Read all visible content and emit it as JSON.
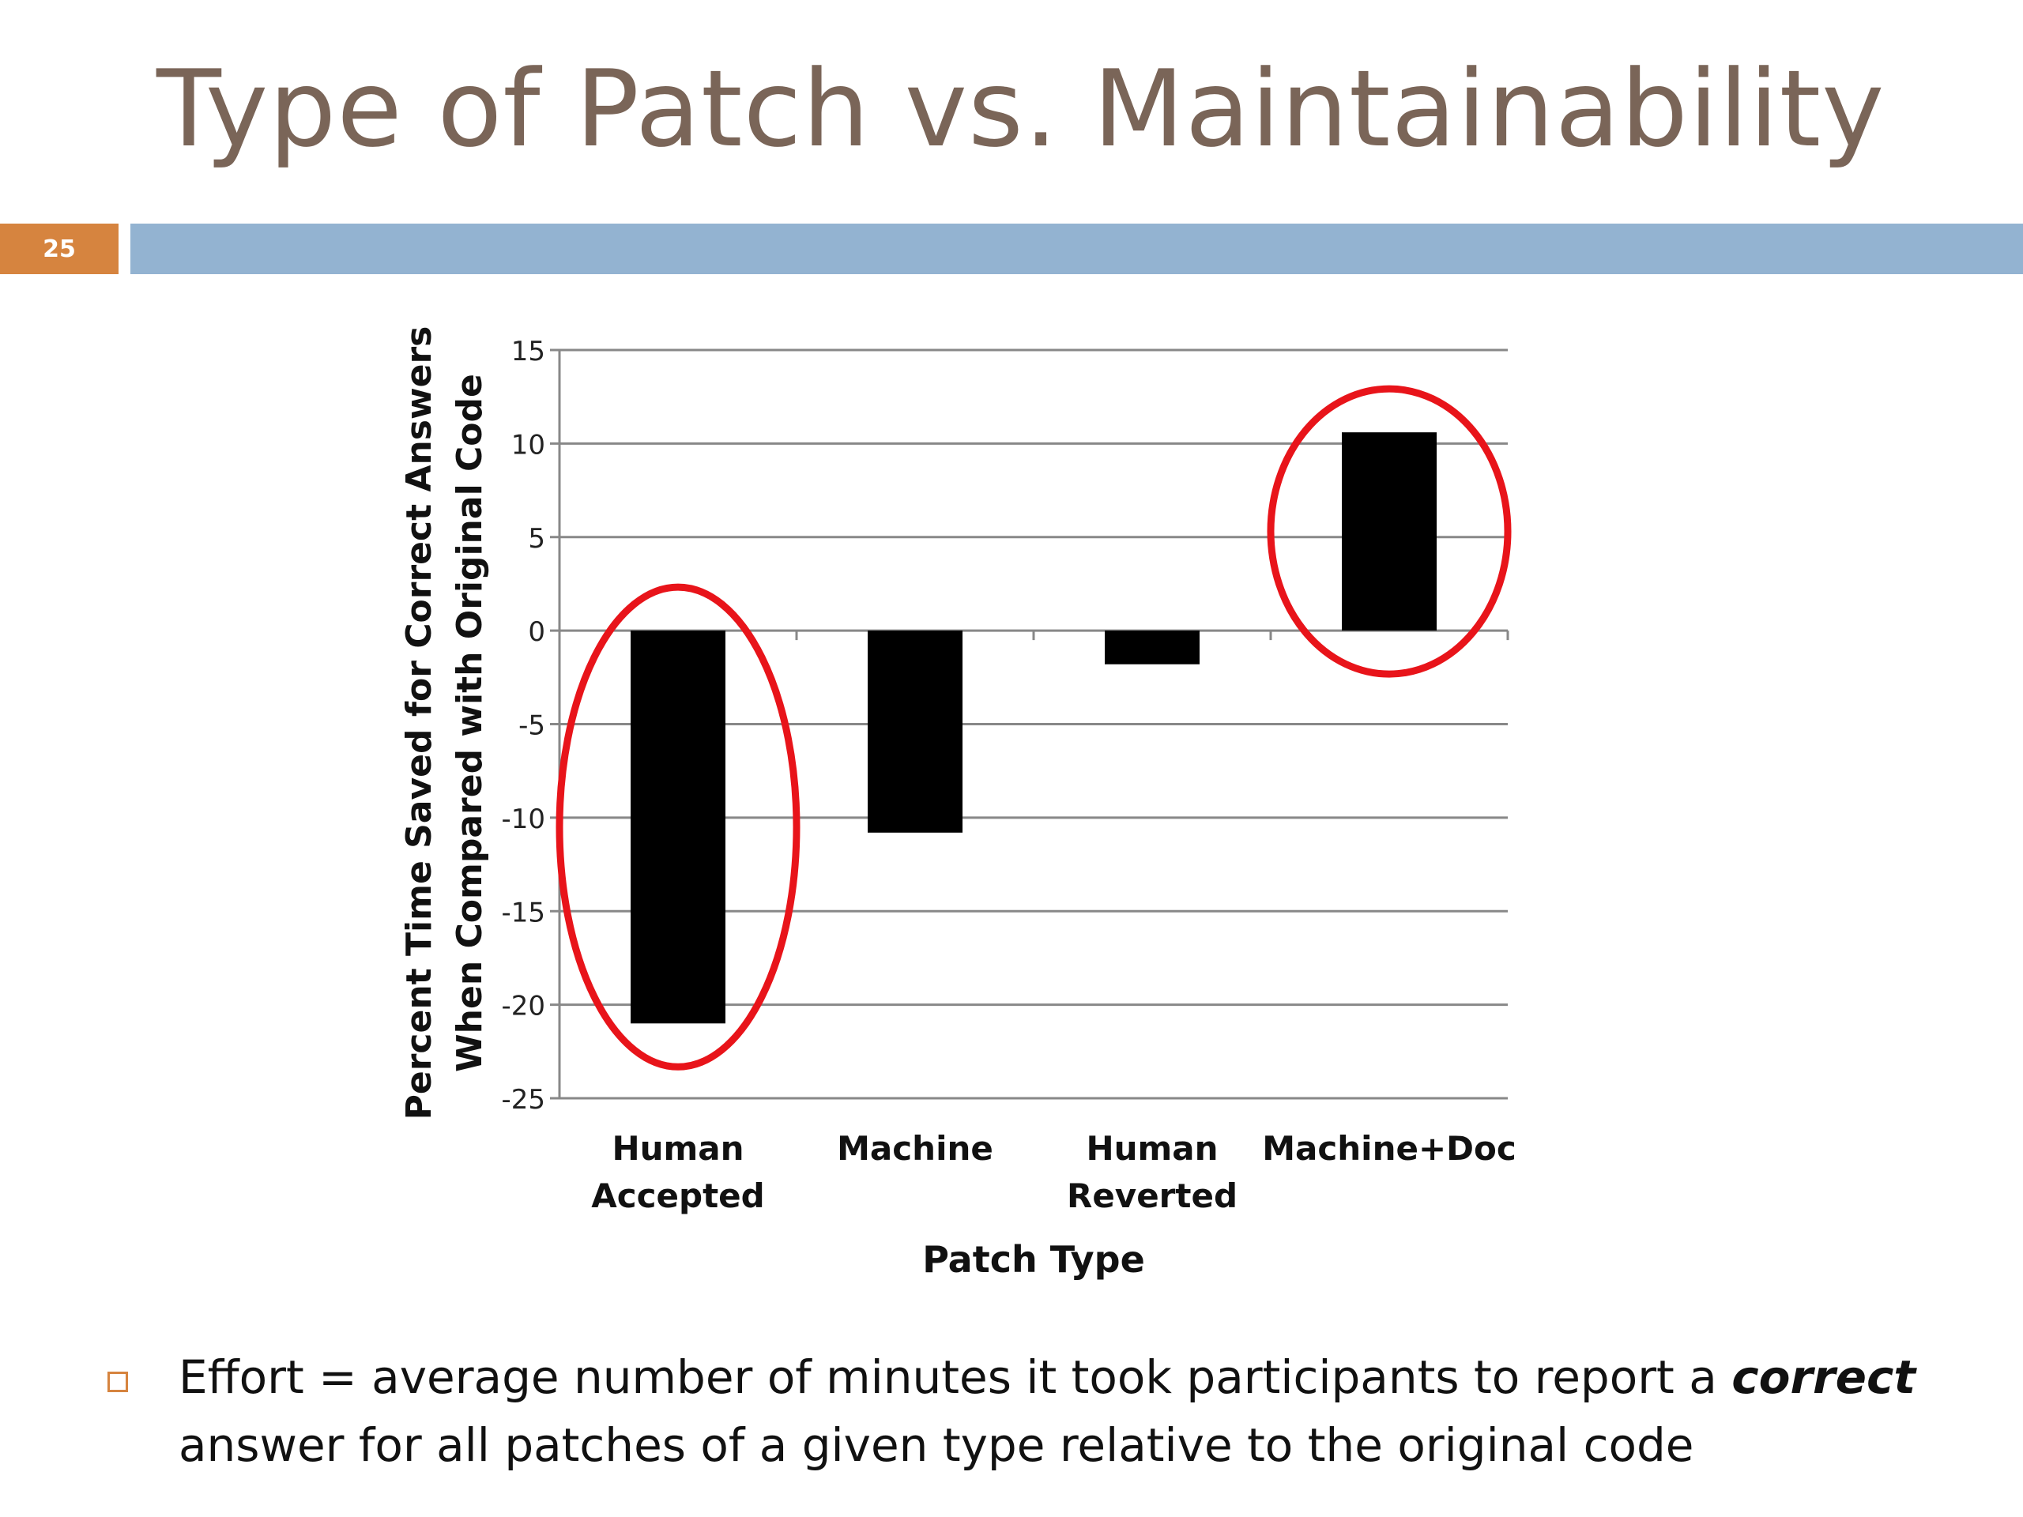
{
  "slide": {
    "title": "Type of Patch vs. Maintainability",
    "page_number": "25"
  },
  "bullet": {
    "prefix": "Effort = average number of minutes it took participants to report a",
    "emphasis": "correct",
    "suffix": "answer for all patches of a given type relative to the original code"
  },
  "colors": {
    "title": "#7a6558",
    "accent_orange": "#d6843f",
    "title_rule_blue": "#93b3d1",
    "bars": "#000000",
    "highlight_ellipse": "#e8141a",
    "gridlines": "#888888"
  },
  "chart_data": {
    "type": "bar",
    "categories": [
      [
        "Human",
        "Accepted"
      ],
      [
        "Machine"
      ],
      [
        "Human",
        "Reverted"
      ],
      [
        "Machine+Doc"
      ]
    ],
    "values": [
      -21,
      -10.8,
      -1.8,
      10.6
    ],
    "ylim": [
      -25,
      15
    ],
    "yticks": [
      15,
      10,
      5,
      0,
      -5,
      -10,
      -15,
      -20,
      -25
    ],
    "ytick_labels": [
      "15",
      "10",
      "5",
      "0",
      "-5",
      "-10",
      "-15",
      "-20",
      "-25"
    ],
    "ylabel_lines": [
      "Percent Time Saved for Correct Answers",
      "When Compared with Original Code"
    ],
    "xlabel": "Patch Type",
    "grid": true,
    "highlighted_categories": [
      0,
      3
    ]
  }
}
